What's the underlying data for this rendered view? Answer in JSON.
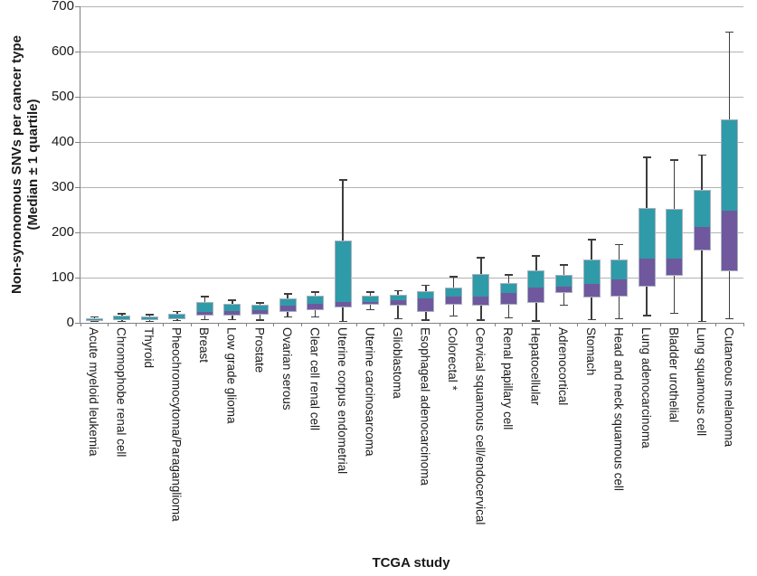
{
  "chart_data": {
    "type": "box",
    "title": "",
    "xlabel": "TCGA study",
    "ylabel_line1": "Non-synonomous SNVs per cancer type",
    "ylabel_line2": "(Median ± 1 quartile)",
    "ylim": [
      0,
      700
    ],
    "yticks": [
      0,
      100,
      200,
      300,
      400,
      500,
      600,
      700
    ],
    "grid": true,
    "legend": "none",
    "colors": {
      "upper_box_median_to_q3": "#2F9BA8",
      "lower_box_q1_to_median": "#6F589E",
      "whisker": "#3d3d3d",
      "box_border": "#aab0bf",
      "gridline": "#b3b3b3",
      "axis": "#808080",
      "text": "#1a1a1a"
    },
    "categories": [
      "Acute myeloid leukemia",
      "Chromophobe renal cell",
      "Thyroid",
      "Pheochromocytoma/Paraganglioma",
      "Breast",
      "Low grade glioma",
      "Prostate",
      "Ovarian serous",
      "Clear cell renal cell",
      "Uterine corpus endometrial",
      "Uterine carcinosarcoma",
      "Glioblastoma",
      "Esophageal adenocarcinoma",
      "Colorectal *",
      "Cervical squamous cell/endocervical",
      "Renal papillary cell",
      "Hepatocellular",
      "Adrenocortical",
      "Stomach",
      "Head and neck squamous cell",
      "Lung adenocarcinoma",
      "Bladder urothelial",
      "Lung squamous cell",
      "Cutaneous melanoma"
    ],
    "boxes": [
      {
        "label": "Acute myeloid leukemia",
        "whisker_low": 2,
        "q1": 4,
        "median": 8,
        "q3": 11,
        "whisker_high": 15
      },
      {
        "label": "Chromophobe renal cell",
        "whisker_low": 2,
        "q1": 6,
        "median": 10,
        "q3": 16,
        "whisker_high": 22
      },
      {
        "label": "Thyroid",
        "whisker_low": 2,
        "q1": 7,
        "median": 10,
        "q3": 15,
        "whisker_high": 20
      },
      {
        "label": "Pheochromocytoma/Paraganglioma",
        "whisker_low": 4,
        "q1": 8,
        "median": 12,
        "q3": 20,
        "whisker_high": 27
      },
      {
        "label": "Breast",
        "whisker_low": 6,
        "q1": 16,
        "median": 26,
        "q3": 47,
        "whisker_high": 60
      },
      {
        "label": "Low grade glioma",
        "whisker_low": 6,
        "q1": 17,
        "median": 28,
        "q3": 42,
        "whisker_high": 52
      },
      {
        "label": "Prostate",
        "whisker_low": 5,
        "q1": 18,
        "median": 30,
        "q3": 40,
        "whisker_high": 46
      },
      {
        "label": "Ovarian serous",
        "whisker_low": 12,
        "q1": 25,
        "median": 40,
        "q3": 54,
        "whisker_high": 66
      },
      {
        "label": "Clear cell renal cell",
        "whisker_low": 12,
        "q1": 28,
        "median": 44,
        "q3": 60,
        "whisker_high": 70
      },
      {
        "label": "Uterine corpus endometrial",
        "whisker_low": 2,
        "q1": 34,
        "median": 48,
        "q3": 183,
        "whisker_high": 318
      },
      {
        "label": "Uterine carcinosarcoma",
        "whisker_low": 28,
        "q1": 40,
        "median": 48,
        "q3": 60,
        "whisker_high": 70
      },
      {
        "label": "Glioblastoma",
        "whisker_low": 8,
        "q1": 38,
        "median": 52,
        "q3": 62,
        "whisker_high": 73
      },
      {
        "label": "Esophageal adenocarcinoma",
        "whisker_low": 5,
        "q1": 24,
        "median": 56,
        "q3": 70,
        "whisker_high": 85
      },
      {
        "label": "Colorectal *",
        "whisker_low": 14,
        "q1": 40,
        "median": 60,
        "q3": 79,
        "whisker_high": 104
      },
      {
        "label": "Cervical squamous cell/endocervical",
        "whisker_low": 5,
        "q1": 39,
        "median": 60,
        "q3": 108,
        "whisker_high": 146
      },
      {
        "label": "Renal papillary cell",
        "whisker_low": 10,
        "q1": 40,
        "median": 68,
        "q3": 88,
        "whisker_high": 108
      },
      {
        "label": "Hepatocellular",
        "whisker_low": 3,
        "q1": 44,
        "median": 80,
        "q3": 116,
        "whisker_high": 150
      },
      {
        "label": "Adrenocortical",
        "whisker_low": 38,
        "q1": 66,
        "median": 82,
        "q3": 106,
        "whisker_high": 130
      },
      {
        "label": "Stomach",
        "whisker_low": 6,
        "q1": 56,
        "median": 88,
        "q3": 140,
        "whisker_high": 186
      },
      {
        "label": "Head and neck squamous cell",
        "whisker_low": 8,
        "q1": 58,
        "median": 98,
        "q3": 140,
        "whisker_high": 175
      },
      {
        "label": "Lung adenocarcinoma",
        "whisker_low": 15,
        "q1": 80,
        "median": 145,
        "q3": 255,
        "whisker_high": 368
      },
      {
        "label": "Bladder urothelial",
        "whisker_low": 20,
        "q1": 105,
        "median": 145,
        "q3": 253,
        "whisker_high": 362
      },
      {
        "label": "Lung squamous cell",
        "whisker_low": 2,
        "q1": 160,
        "median": 215,
        "q3": 295,
        "whisker_high": 373
      },
      {
        "label": "Cutaneous melanoma",
        "whisker_low": 8,
        "q1": 115,
        "median": 250,
        "q3": 450,
        "whisker_high": 645
      }
    ]
  }
}
